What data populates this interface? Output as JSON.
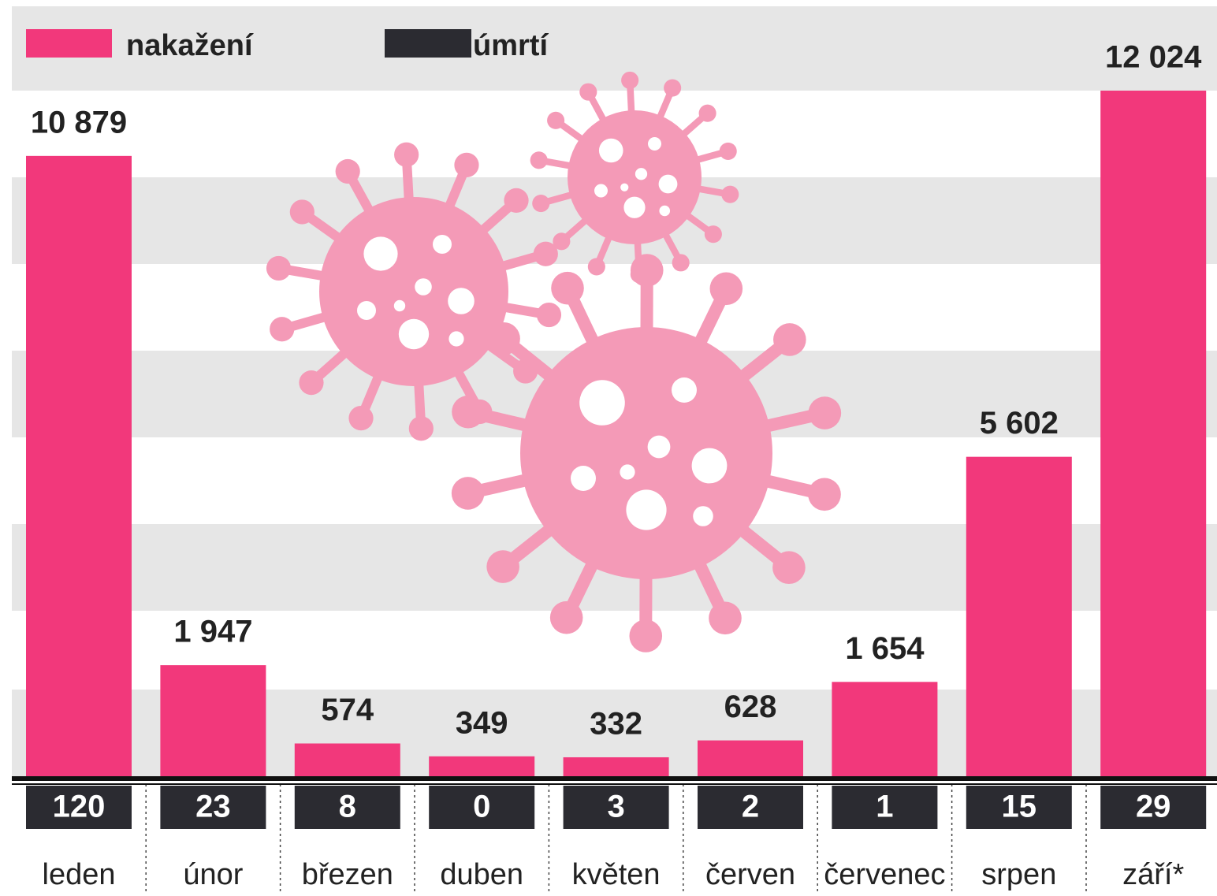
{
  "chart_data": {
    "type": "bar",
    "categories": [
      "leden",
      "únor",
      "březen",
      "duben",
      "květen",
      "červen",
      "červenec",
      "srpen",
      "září*"
    ],
    "series": [
      {
        "name": "nakažení",
        "color": "#f2387b",
        "values": [
          10879,
          1947,
          574,
          349,
          332,
          628,
          1654,
          5602,
          12024
        ],
        "value_labels": [
          "10 879",
          "1 947",
          "574",
          "349",
          "332",
          "628",
          "1 654",
          "5 602",
          "12 024"
        ]
      },
      {
        "name": "úmrtí",
        "color": "#2b2b31",
        "values": [
          120,
          23,
          8,
          0,
          3,
          2,
          1,
          15,
          29
        ]
      }
    ]
  }
}
